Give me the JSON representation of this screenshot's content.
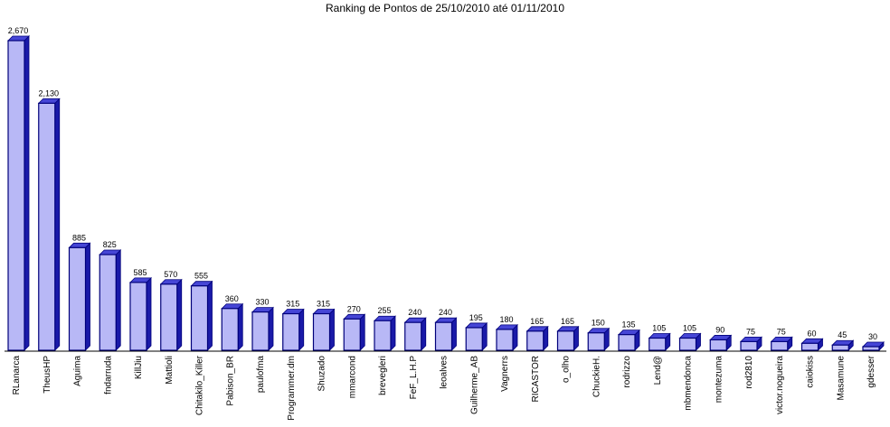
{
  "chart_data": {
    "type": "bar",
    "title": "Ranking de Pontos de 25/10/2010 até 01/11/2010",
    "xlabel": "",
    "ylabel": "",
    "ylim": [
      0,
      2670
    ],
    "categories": [
      "RLanarca",
      "TheusHP",
      "Aguima",
      "fndarruda",
      "KillJiu",
      "Mattioli",
      "Chitakilo_Killer",
      "Pabison_BR",
      "paulofma",
      "Programmer.dm",
      "Shuzado",
      "mmarcond",
      "brevegleri",
      "FeF_L.H.P",
      "leoalves",
      "Guilherme_AB",
      "Vagnerrs",
      "RICASTOR",
      "o_olho",
      "ChuckieH.",
      "rodrizzo",
      "Lend@",
      "mbmendonca",
      "montezuma",
      "rod2810",
      "victor.nogueira",
      "caiokiss",
      "Masamune",
      "gdesser"
    ],
    "value_labels": [
      "2,670",
      "2,130",
      "885",
      "825",
      "585",
      "570",
      "555",
      "360",
      "330",
      "315",
      "315",
      "270",
      "255",
      "240",
      "240",
      "195",
      "180",
      "165",
      "165",
      "150",
      "135",
      "105",
      "105",
      "90",
      "75",
      "75",
      "60",
      "45",
      "30"
    ],
    "series": [
      {
        "values": [
          2670,
          2130,
          885,
          825,
          585,
          570,
          555,
          360,
          330,
          315,
          315,
          270,
          255,
          240,
          240,
          195,
          180,
          165,
          165,
          150,
          135,
          105,
          105,
          90,
          75,
          75,
          60,
          45,
          30
        ]
      }
    ],
    "grid": false,
    "legend": "none",
    "colors": {
      "bar_face": "#b8b8f6",
      "bar_side": "#1a1aa8",
      "bar_top": "#4646d6",
      "bar_stroke": "#00007a",
      "axis": "#000000"
    }
  }
}
